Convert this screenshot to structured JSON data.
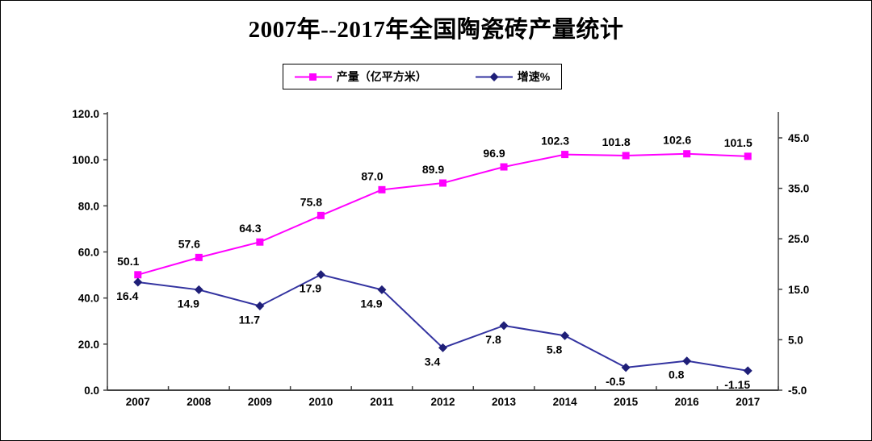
{
  "chart_data": {
    "type": "line",
    "title": "2007年--2017年全国陶瓷砖产量统计",
    "categories": [
      "2007",
      "2008",
      "2009",
      "2010",
      "2011",
      "2012",
      "2013",
      "2014",
      "2015",
      "2016",
      "2017"
    ],
    "series": [
      {
        "name": "产量（亿平方米）",
        "axis": "left",
        "color": "#ff00ff",
        "marker_color": "#ff00ff",
        "marker": "square",
        "values": [
          50.1,
          57.6,
          64.3,
          75.8,
          87.0,
          89.9,
          96.9,
          102.3,
          101.8,
          102.6,
          101.5
        ],
        "labels": [
          "50.1",
          "57.6",
          "64.3",
          "75.8",
          "87.0",
          "89.9",
          "96.9",
          "102.3",
          "101.8",
          "102.6",
          "101.5"
        ]
      },
      {
        "name": "增速%",
        "axis": "right",
        "color": "#3333a0",
        "marker_color": "#1f1f78",
        "marker": "diamond",
        "values": [
          16.4,
          14.9,
          11.7,
          17.9,
          14.9,
          3.4,
          7.8,
          5.8,
          -0.5,
          0.8,
          -1.15
        ],
        "labels": [
          "16.4",
          "14.9",
          "11.7",
          "17.9",
          "14.9",
          "3.4",
          "7.8",
          "5.8",
          "-0.5",
          "0.8",
          "-1.15"
        ]
      }
    ],
    "left_axis": {
      "min": 0,
      "max": 120,
      "ticks": [
        "0.0",
        "20.0",
        "40.0",
        "60.0",
        "80.0",
        "100.0",
        "120.0"
      ]
    },
    "right_axis": {
      "min": -5,
      "max": 45,
      "ticks": [
        "-5.0",
        "5.0",
        "15.0",
        "25.0",
        "35.0",
        "45.0"
      ]
    },
    "grid": false,
    "legend_position": "top",
    "axis_color": "#404040",
    "text_color": "#000000"
  }
}
